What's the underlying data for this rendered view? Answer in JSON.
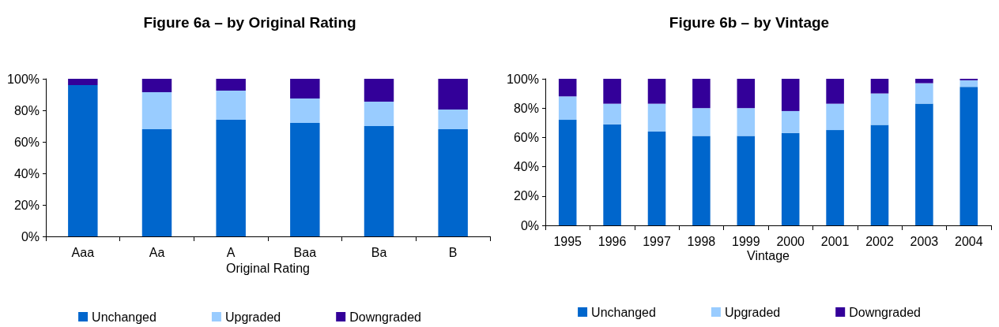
{
  "chart_data": [
    {
      "type": "bar",
      "title": "Figure 6a – by Original Rating",
      "xlabel": "Original Rating",
      "stacked": true,
      "categories": [
        "Aaa",
        "Aa",
        "A",
        "Baa",
        "Ba",
        "B"
      ],
      "series": [
        {
          "name": "Unchanged",
          "color": "#0066cc",
          "values": [
            96,
            68,
            74,
            72,
            70,
            68
          ]
        },
        {
          "name": "Upgraded",
          "color": "#99ccff",
          "values": [
            0,
            23.5,
            18.5,
            15.5,
            15.5,
            12.5
          ]
        },
        {
          "name": "Downgraded",
          "color": "#330099",
          "values": [
            4,
            8.5,
            7.5,
            12.5,
            14.5,
            19.5
          ]
        }
      ],
      "ylim": [
        0,
        100
      ],
      "yticks": [
        {
          "value": 0,
          "label": "0%"
        },
        {
          "value": 20,
          "label": "20%"
        },
        {
          "value": 40,
          "label": "40%"
        },
        {
          "value": 60,
          "label": "60%"
        },
        {
          "value": 80,
          "label": "80%"
        },
        {
          "value": 100,
          "label": "100%"
        }
      ],
      "grid": false,
      "legend": "bottom"
    },
    {
      "type": "bar",
      "title": "Figure 6b – by Vintage",
      "xlabel": "Vintage",
      "stacked": true,
      "categories": [
        "1995",
        "1996",
        "1997",
        "1998",
        "1999",
        "2000",
        "2001",
        "2002",
        "2003",
        "2004"
      ],
      "series": [
        {
          "name": "Unchanged",
          "color": "#0066cc",
          "values": [
            72,
            69,
            64,
            61,
            61,
            63,
            65,
            68.5,
            83,
            94.5
          ]
        },
        {
          "name": "Upgraded",
          "color": "#99ccff",
          "values": [
            16,
            14,
            19,
            19,
            19,
            15,
            18,
            21.5,
            14,
            4.5
          ]
        },
        {
          "name": "Downgraded",
          "color": "#330099",
          "values": [
            12,
            17,
            17,
            20,
            20,
            22,
            17,
            10,
            3,
            1
          ]
        }
      ],
      "ylim": [
        0,
        100
      ],
      "yticks": [
        {
          "value": 0,
          "label": "0%"
        },
        {
          "value": 20,
          "label": "20%"
        },
        {
          "value": 40,
          "label": "40%"
        },
        {
          "value": 60,
          "label": "60%"
        },
        {
          "value": 80,
          "label": "80%"
        },
        {
          "value": 100,
          "label": "100%"
        }
      ],
      "grid": false,
      "legend": "bottom"
    }
  ]
}
